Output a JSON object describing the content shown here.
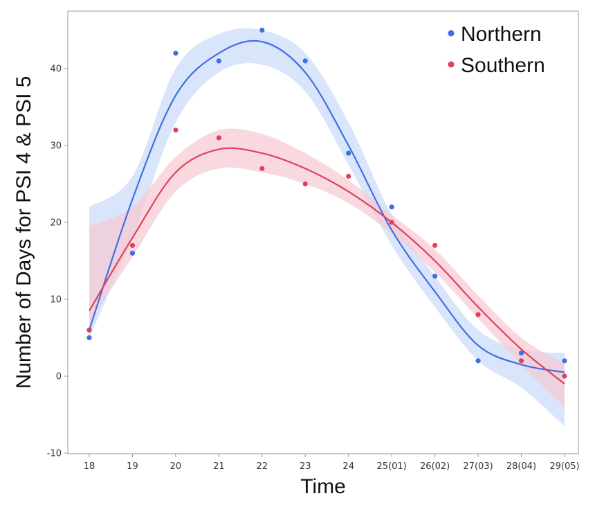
{
  "chart_data": {
    "type": "scatter",
    "xlabel": "Time",
    "ylabel": "Number of Days for PSI 4 & PSI 5",
    "categories": [
      "18",
      "19",
      "20",
      "21",
      "22",
      "23",
      "24",
      "25(01)",
      "26(02)",
      "27(03)",
      "28(04)",
      "29(05)"
    ],
    "ylim": [
      -10,
      45
    ],
    "yticks": [
      -10,
      0,
      10,
      20,
      30,
      40
    ],
    "grid": false,
    "legend_position": "top-right",
    "series": [
      {
        "name": "Northern",
        "color": "#3f6fe0",
        "band_color": "#c9daf8",
        "points": [
          5,
          16,
          42,
          41,
          45,
          41,
          29,
          22,
          13,
          2,
          3,
          2
        ],
        "fit": [
          6,
          23,
          36.5,
          42,
          43.5,
          39.5,
          30,
          19,
          11,
          4,
          1.5,
          0.5
        ],
        "fit_upper": [
          22,
          26,
          40,
          44.5,
          45,
          42,
          33,
          21,
          13,
          6,
          3.5,
          3
        ],
        "fit_lower": [
          5,
          18,
          33,
          39.5,
          40.5,
          37,
          27.5,
          17,
          9,
          2,
          -1.5,
          -6.5
        ]
      },
      {
        "name": "Southern",
        "color": "#e0405a",
        "band_color": "#f7c9d1",
        "points": [
          6,
          17,
          32,
          31,
          27,
          25,
          26,
          20,
          17,
          8,
          2,
          0
        ],
        "fit": [
          8.5,
          18,
          26.5,
          29.5,
          29,
          27,
          24,
          20,
          15,
          9,
          3.5,
          -1
        ],
        "fit_upper": [
          19.5,
          22,
          28.5,
          32,
          31.5,
          29,
          25.5,
          21,
          16.5,
          10.5,
          5,
          1.5
        ],
        "fit_lower": [
          7,
          15.5,
          24,
          27,
          26.5,
          25,
          22.5,
          18.5,
          13.5,
          7.5,
          1.5,
          -4
        ]
      }
    ]
  }
}
